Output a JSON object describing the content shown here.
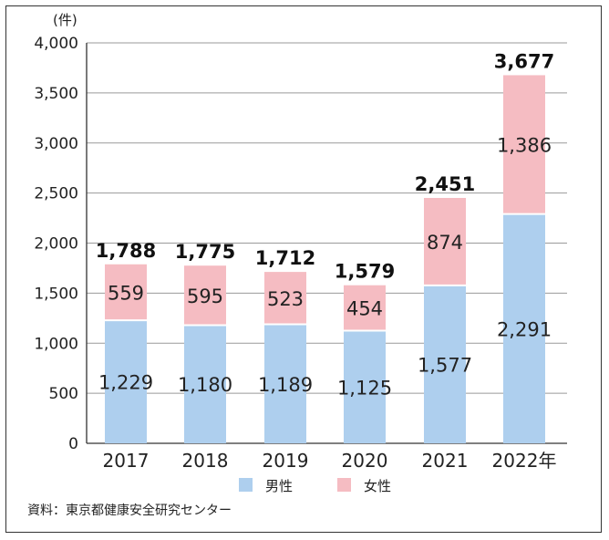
{
  "chart_data": {
    "type": "bar",
    "stacked": true,
    "unit_label": "(件)",
    "categories": [
      "2017",
      "2018",
      "2019",
      "2020",
      "2021",
      "2022年"
    ],
    "series": [
      {
        "name": "男性",
        "color": "#aecfee",
        "values": [
          1229,
          1180,
          1189,
          1125,
          1577,
          2291
        ]
      },
      {
        "name": "女性",
        "color": "#f5bcc2",
        "values": [
          559,
          595,
          523,
          454,
          874,
          1386
        ]
      }
    ],
    "totals": [
      1788,
      1775,
      1712,
      1579,
      2451,
      3677
    ],
    "labels": {
      "male": [
        "1,229",
        "1,180",
        "1,189",
        "1,125",
        "1,577",
        "2,291"
      ],
      "female": [
        "559",
        "595",
        "523",
        "454",
        "874",
        "1,386"
      ],
      "totals": [
        "1,788",
        "1,775",
        "1,712",
        "1,579",
        "2,451",
        "3,677"
      ]
    },
    "y_ticks": [
      "0",
      "500",
      "1,000",
      "1,500",
      "2,000",
      "2,500",
      "3,000",
      "3,500",
      "4,000"
    ],
    "ylim": [
      0,
      4000
    ],
    "grid": true,
    "legend": "bottom-center"
  },
  "source": "資料：東京都健康安全研究センター"
}
